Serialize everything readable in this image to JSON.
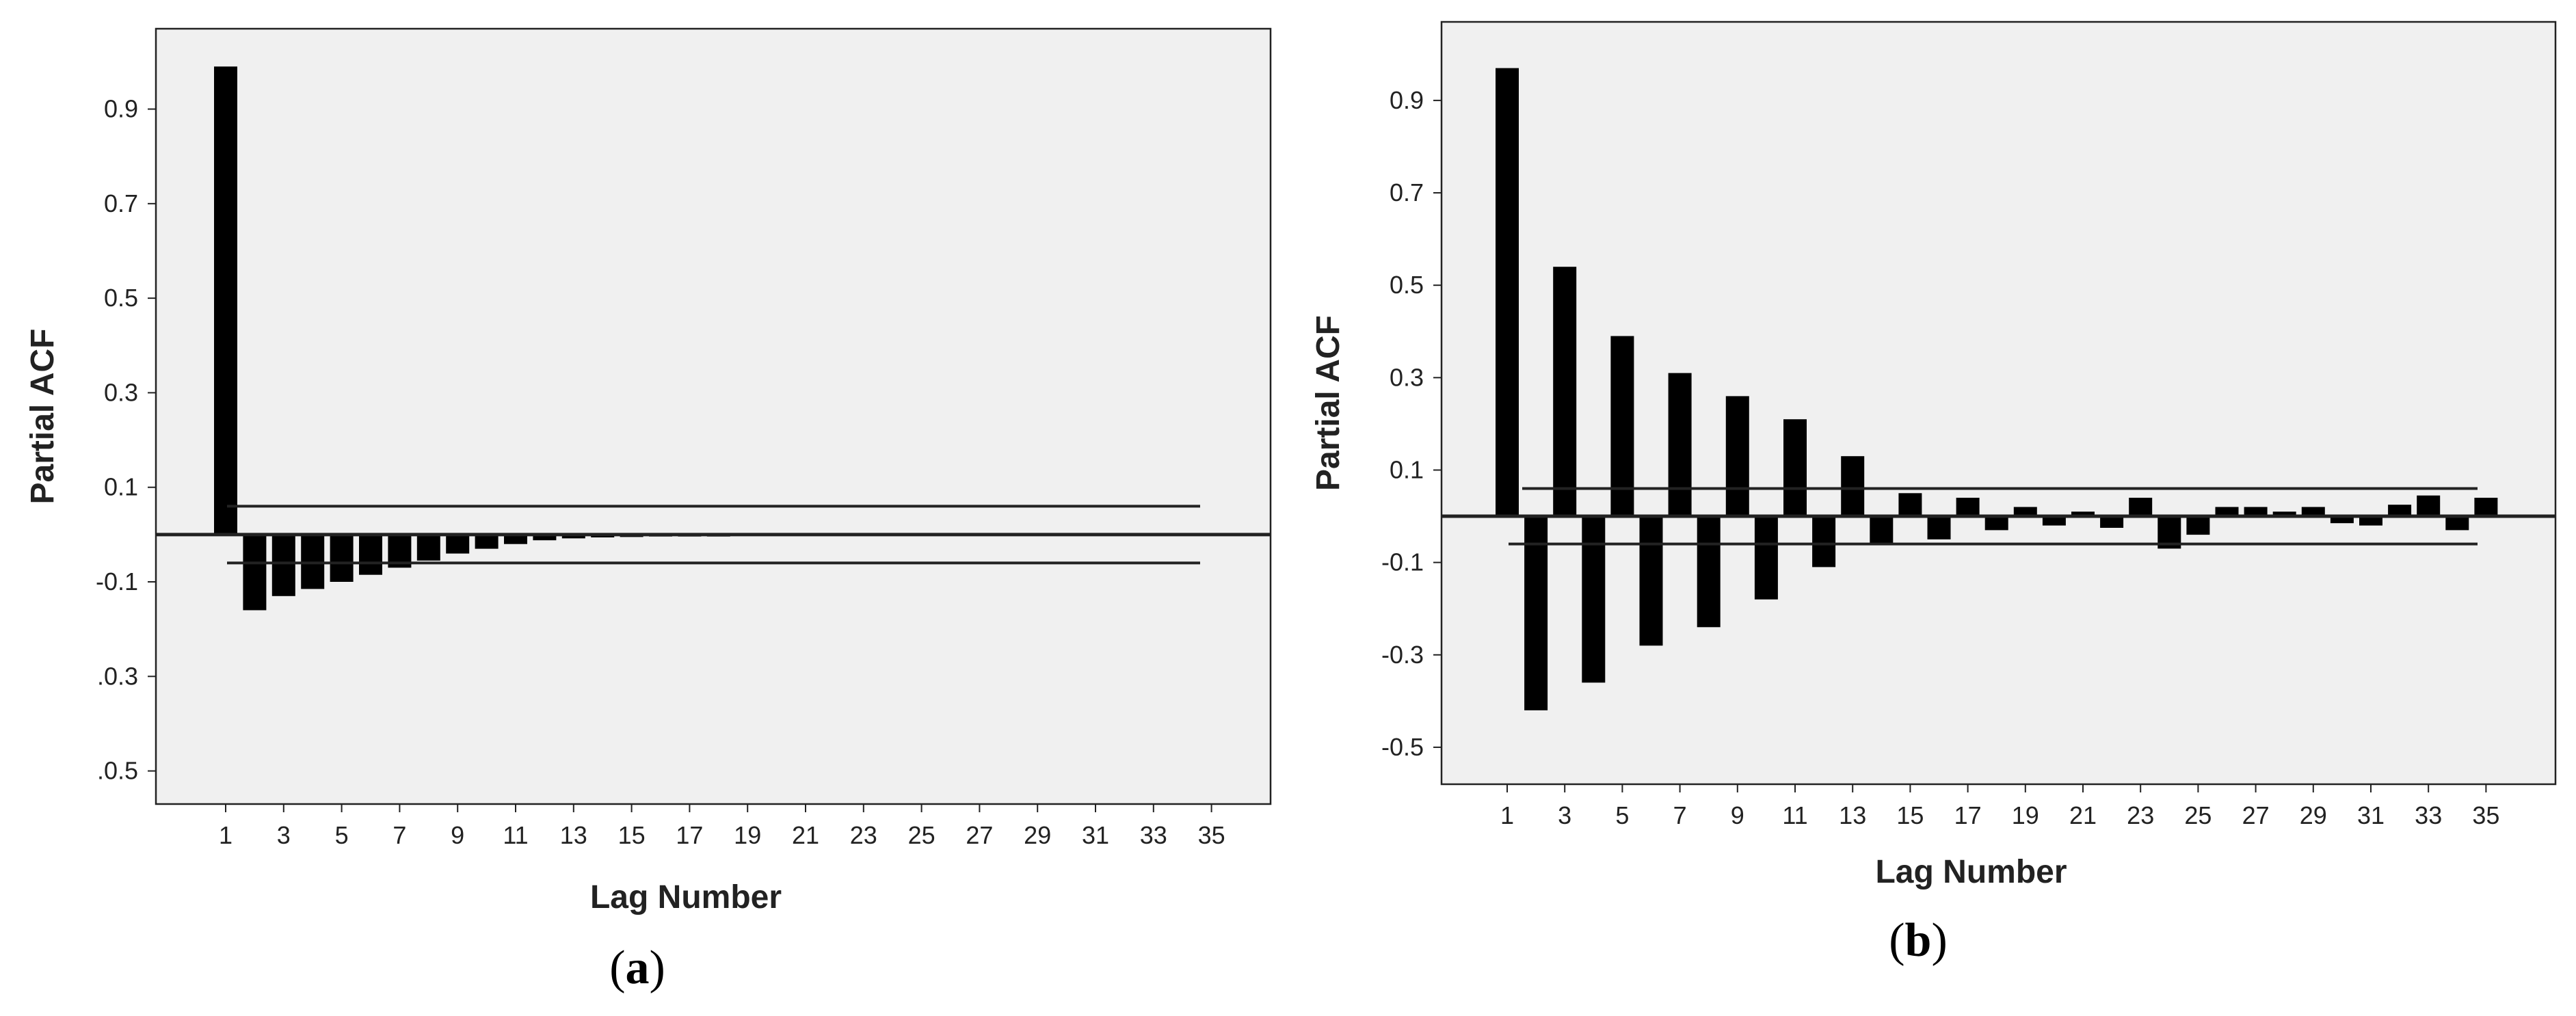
{
  "panels": [
    {
      "label_open": "(",
      "label_letter": "a",
      "label_close": ")"
    },
    {
      "label_open": "(",
      "label_letter": "b",
      "label_close": ")"
    }
  ],
  "chart_data": [
    {
      "type": "bar",
      "xlabel": "Lag Number",
      "ylabel": "Partial ACF",
      "ylim": [
        -0.57,
        1.07
      ],
      "yticks": [
        -0.5,
        -0.3,
        -0.1,
        0.1,
        0.3,
        0.5,
        0.7,
        0.9
      ],
      "ytick_labels": [
        ".0.5",
        ".0.3",
        "-0.1",
        "0.1",
        "0.3",
        "0.5",
        "0.7",
        "0.9"
      ],
      "xtick_labels": [
        "1",
        "3",
        "5",
        "7",
        "9",
        "11",
        "13",
        "15",
        "17",
        "19",
        "21",
        "23",
        "25",
        "27",
        "29",
        "31",
        "33",
        "35"
      ],
      "confidence_limits": [
        0.06,
        -0.06
      ],
      "grid": false,
      "categories": [
        1,
        2,
        3,
        4,
        5,
        6,
        7,
        8,
        9,
        10,
        11,
        12,
        13,
        14,
        15,
        16,
        17,
        18,
        19,
        20,
        21,
        22,
        23,
        24,
        25,
        26,
        27,
        28,
        29,
        30,
        31,
        32,
        33,
        34,
        35
      ],
      "values": [
        0.99,
        -0.16,
        -0.13,
        -0.115,
        -0.1,
        -0.085,
        -0.07,
        -0.055,
        -0.04,
        -0.03,
        -0.02,
        -0.012,
        -0.008,
        -0.006,
        -0.005,
        -0.004,
        -0.004,
        -0.004,
        -0.003,
        -0.003,
        -0.003,
        -0.003,
        -0.003,
        -0.003,
        -0.003,
        -0.003,
        -0.003,
        -0.003,
        -0.003,
        -0.003,
        -0.003,
        -0.003,
        -0.003,
        -0.003,
        -0.003
      ]
    },
    {
      "type": "bar",
      "xlabel": "Lag Number",
      "ylabel": "Partial ACF",
      "ylim": [
        -0.58,
        1.07
      ],
      "yticks": [
        -0.5,
        -0.3,
        -0.1,
        0.1,
        0.3,
        0.5,
        0.7,
        0.9
      ],
      "ytick_labels": [
        "-0.5",
        "-0.3",
        "-0.1",
        "0.1",
        "0.3",
        "0.5",
        "0.7",
        "0.9"
      ],
      "xtick_labels": [
        "1",
        "3",
        "5",
        "7",
        "9",
        "11",
        "13",
        "15",
        "17",
        "19",
        "21",
        "23",
        "25",
        "27",
        "29",
        "31",
        "33",
        "35"
      ],
      "confidence_limits": [
        0.06,
        -0.06
      ],
      "grid": false,
      "categories": [
        1,
        2,
        3,
        4,
        5,
        6,
        7,
        8,
        9,
        10,
        11,
        12,
        13,
        14,
        15,
        16,
        17,
        18,
        19,
        20,
        21,
        22,
        23,
        24,
        25,
        26,
        27,
        28,
        29,
        30,
        31,
        32,
        33,
        34,
        35
      ],
      "values": [
        0.97,
        -0.42,
        0.54,
        -0.36,
        0.39,
        -0.28,
        0.31,
        -0.24,
        0.26,
        -0.18,
        0.21,
        -0.11,
        0.13,
        -0.06,
        0.05,
        -0.05,
        0.04,
        -0.03,
        0.02,
        -0.02,
        0.01,
        -0.025,
        0.04,
        -0.07,
        -0.04,
        0.02,
        0.02,
        0.01,
        0.02,
        -0.015,
        -0.02,
        0.025,
        0.045,
        -0.03,
        0.04
      ]
    }
  ]
}
